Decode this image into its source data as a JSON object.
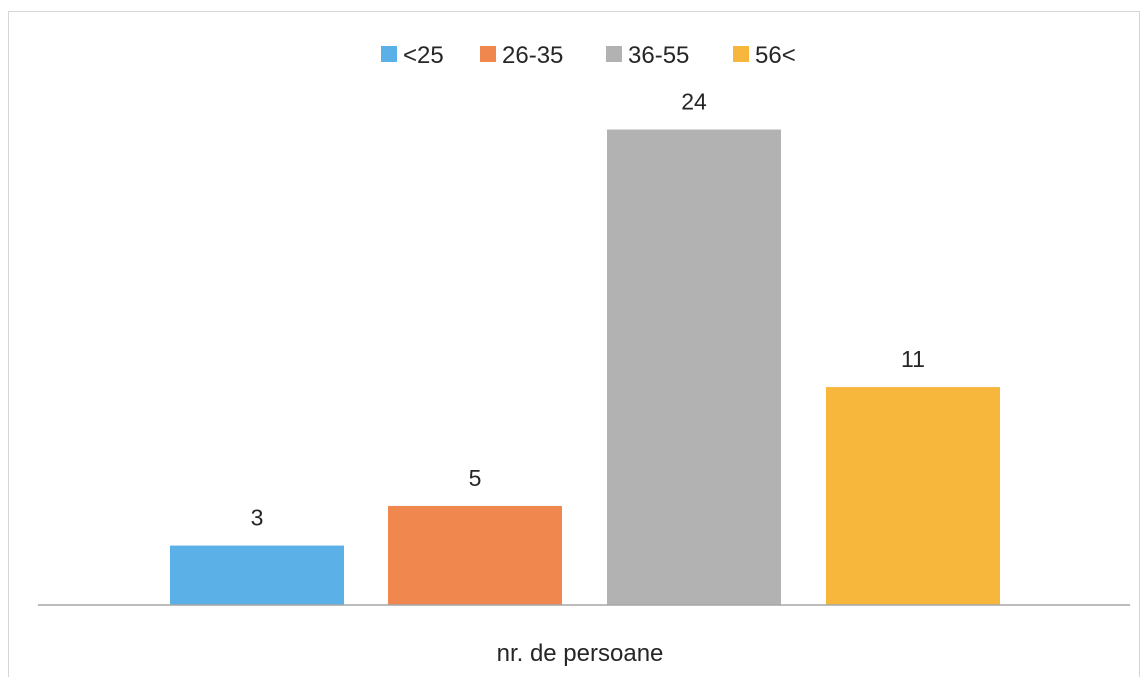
{
  "chart_data": {
    "type": "bar",
    "categories": [
      "nr. de persoane"
    ],
    "xlabel": "nr. de persoane",
    "legend_position": "top",
    "grid": false,
    "ylim": [
      0,
      26.5
    ],
    "series": [
      {
        "name": "<25",
        "values": [
          3
        ],
        "color": "#5bb0e8"
      },
      {
        "name": "26-35",
        "values": [
          5
        ],
        "color": "#f0874f"
      },
      {
        "name": "36-55",
        "values": [
          24
        ],
        "color": "#b2b2b2"
      },
      {
        "name": "56<",
        "values": [
          11
        ],
        "color": "#f6b73c"
      }
    ]
  }
}
